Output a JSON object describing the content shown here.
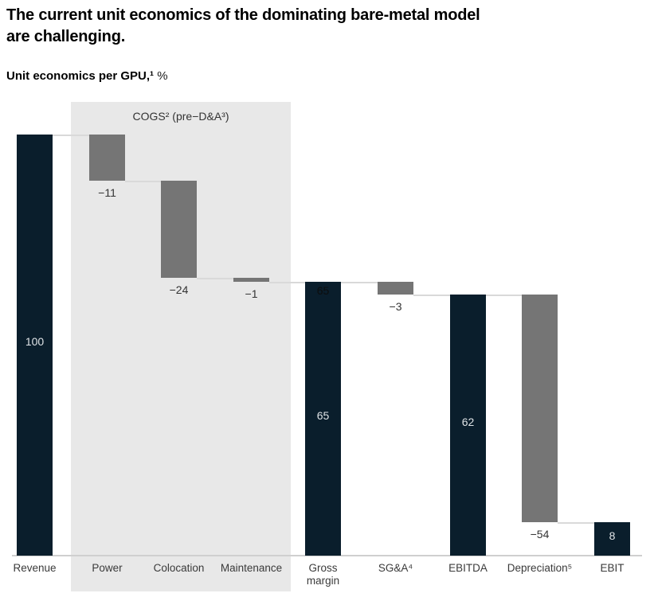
{
  "header": {
    "title": "The current unit economics of the dominating bare-metal model\nare challenging.",
    "subtitle_bold": "Unit economics per GPU,¹",
    "subtitle_suffix": " %"
  },
  "colors": {
    "navy_bar": "#0a1e2c",
    "gray_bar": "#757575",
    "region_bg": "#e8e8e8",
    "connector": "#d9d9d9",
    "baseline": "#cfcfcf",
    "label_dark_text": "#333333",
    "label_light_text": "#dfe3e6",
    "axis_text": "#3a3a3a"
  },
  "chart_data": {
    "type": "bar",
    "subtype": "waterfall",
    "title": "Unit economics per GPU,¹ %",
    "ylim": [
      0,
      100
    ],
    "grid": false,
    "categories": [
      "Revenue",
      "Power",
      "Colocation",
      "Maintenance",
      "Gross margin",
      "SG&A⁴",
      "EBITDA",
      "Depreciation⁵",
      "EBIT"
    ],
    "values": [
      100,
      -11,
      -24,
      -1,
      65,
      -3,
      62,
      -54,
      8
    ],
    "highlight_region": {
      "label": "COGS² (pre−D&A³)",
      "covers": [
        "Power",
        "Colocation",
        "Maintenance"
      ]
    },
    "segments": [
      {
        "category": "Revenue",
        "axis_label": "Revenue",
        "role": "total",
        "color": "navy",
        "start": 0,
        "end": 100,
        "value_label": "100",
        "label_pos": "inside-middle"
      },
      {
        "category": "Power",
        "axis_label": "Power",
        "role": "decrease",
        "color": "gray",
        "start": 100,
        "end": 89,
        "value_label": "−11",
        "label_pos": "below"
      },
      {
        "category": "Colocation",
        "axis_label": "Colocation",
        "role": "decrease",
        "color": "gray",
        "start": 89,
        "end": 66,
        "value_label": "−24",
        "label_pos": "below"
      },
      {
        "category": "Maintenance",
        "axis_label": "Maintenance",
        "role": "decrease",
        "color": "gray",
        "start": 66,
        "end": 65,
        "value_label": "−1",
        "label_pos": "below"
      },
      {
        "category": "Gross margin",
        "axis_label": "Gross\nmargin",
        "role": "total",
        "color": "navy",
        "start": 0,
        "end": 65,
        "value_label": "65",
        "label_pos": "inside-middle",
        "top_inside_label": "65"
      },
      {
        "category": "SG&A⁴",
        "axis_label": "SG&A⁴",
        "role": "decrease",
        "color": "gray",
        "start": 65,
        "end": 62,
        "value_label": "−3",
        "label_pos": "below"
      },
      {
        "category": "EBITDA",
        "axis_label": "EBITDA",
        "role": "total",
        "color": "navy",
        "start": 0,
        "end": 62,
        "value_label": "62",
        "label_pos": "inside-middle"
      },
      {
        "category": "Depreciation⁵",
        "axis_label": "Depreciation⁵",
        "role": "decrease",
        "color": "gray",
        "start": 62,
        "end": 8,
        "value_label": "−54",
        "label_pos": "below"
      },
      {
        "category": "EBIT",
        "axis_label": "EBIT",
        "role": "total",
        "color": "navy",
        "start": 0,
        "end": 8,
        "value_label": "8",
        "label_pos": "inside-middle"
      }
    ]
  }
}
